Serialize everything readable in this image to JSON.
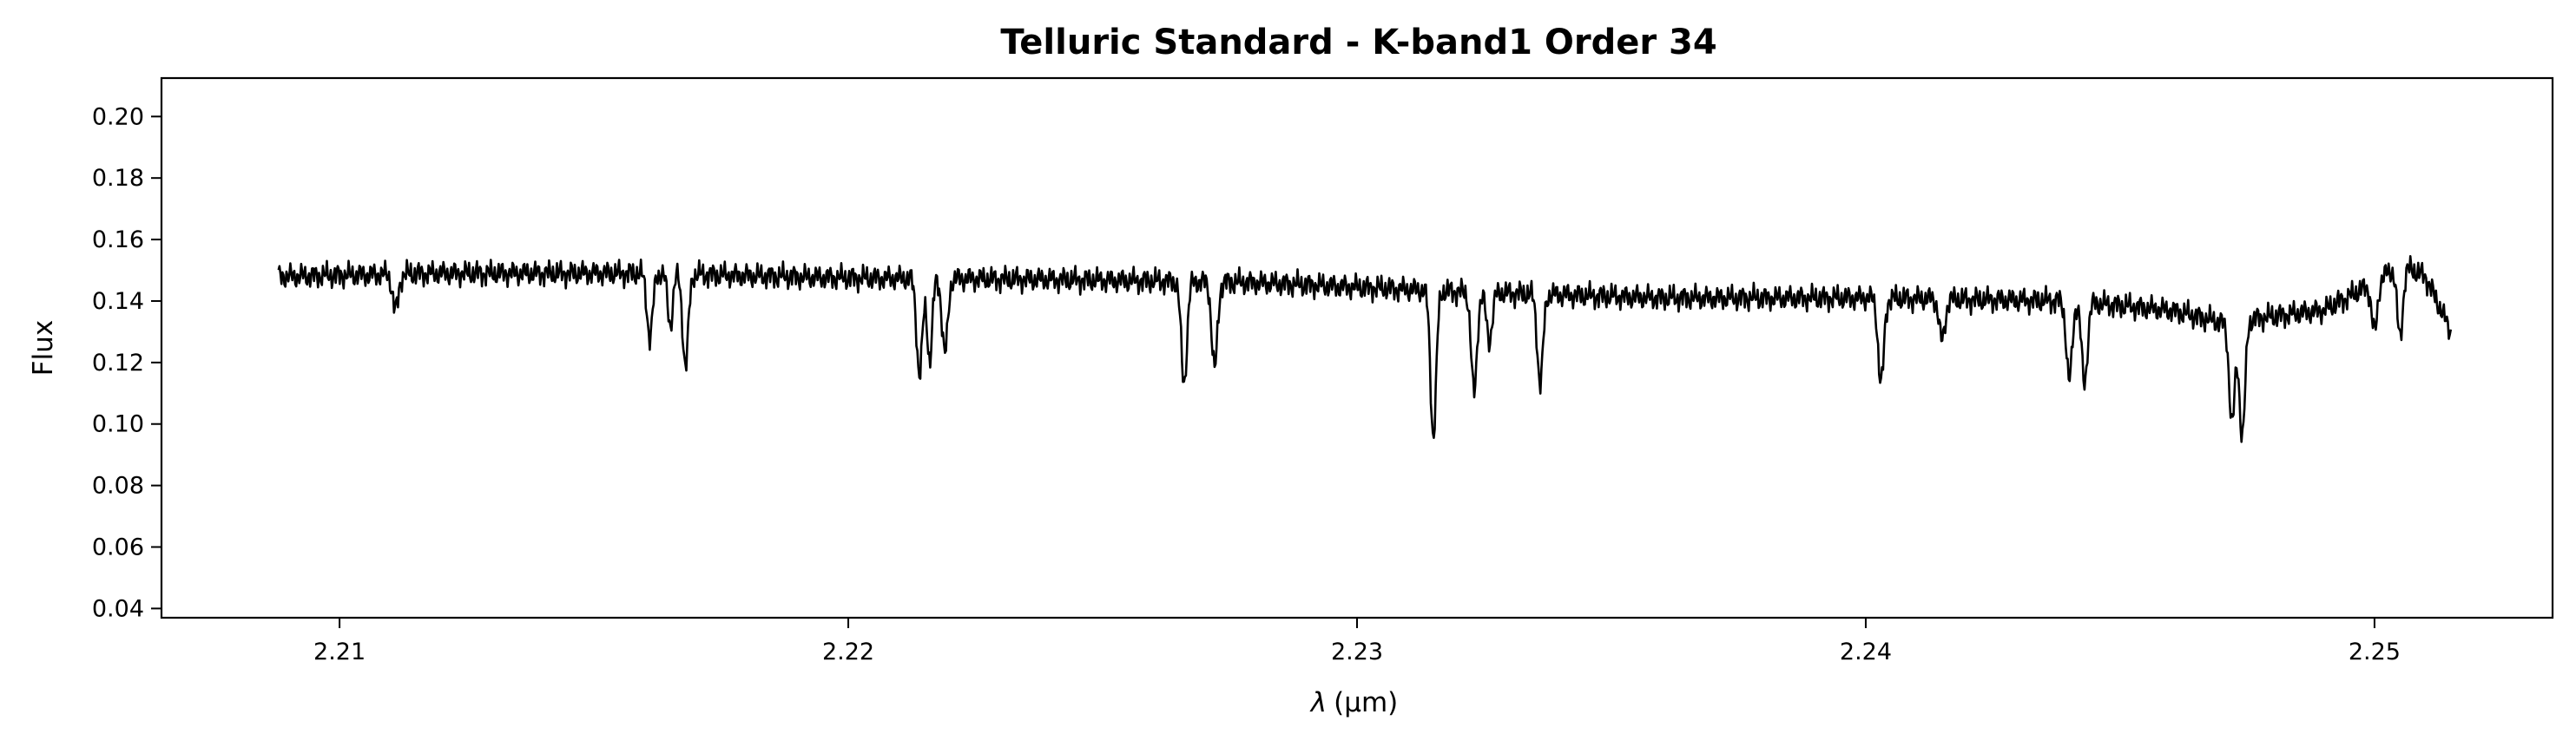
{
  "chart_data": {
    "type": "line",
    "title": "Telluric Standard - K-band1 Order 34",
    "xlabel_symbol": "λ",
    "xlabel_unit": "(μm)",
    "ylabel": "Flux",
    "xlim": [
      2.2065,
      2.2535
    ],
    "ylim": [
      0.037,
      0.2125
    ],
    "x_ticks": [
      2.21,
      2.22,
      2.23,
      2.24,
      2.25
    ],
    "x_tick_labels": [
      "2.21",
      "2.22",
      "2.23",
      "2.24",
      "2.25"
    ],
    "y_ticks": [
      0.04,
      0.06,
      0.08,
      0.1,
      0.12,
      0.14,
      0.16,
      0.18,
      0.2
    ],
    "y_tick_labels": [
      "0.04",
      "0.06",
      "0.08",
      "0.10",
      "0.12",
      "0.14",
      "0.16",
      "0.18",
      "0.20"
    ],
    "grid": false,
    "series": [
      {
        "color": "#000000",
        "x_range": [
          2.2088,
          2.2515
        ],
        "continuum": [
          [
            2.2088,
            0.148
          ],
          [
            2.212,
            0.149
          ],
          [
            2.216,
            0.149
          ],
          [
            2.22,
            0.1475
          ],
          [
            2.224,
            0.147
          ],
          [
            2.228,
            0.146
          ],
          [
            2.232,
            0.143
          ],
          [
            2.236,
            0.141
          ],
          [
            2.24,
            0.141
          ],
          [
            2.244,
            0.14
          ],
          [
            2.246,
            0.137
          ],
          [
            2.247,
            0.133
          ],
          [
            2.248,
            0.135
          ],
          [
            2.249,
            0.137
          ],
          [
            2.25,
            0.146
          ],
          [
            2.2505,
            0.152
          ],
          [
            2.251,
            0.148
          ],
          [
            2.2515,
            0.13
          ]
        ],
        "absorption_lines": [
          [
            2.2111,
            0.137,
            8e-05
          ],
          [
            2.2161,
            0.128,
            8e-05
          ],
          [
            2.2165,
            0.132,
            7e-05
          ],
          [
            2.2168,
            0.119,
            8e-05
          ],
          [
            2.2214,
            0.116,
            8e-05
          ],
          [
            2.2216,
            0.121,
            7e-05
          ],
          [
            2.2219,
            0.123,
            8e-05
          ],
          [
            2.2266,
            0.113,
            8e-05
          ],
          [
            2.2272,
            0.118,
            8e-05
          ],
          [
            2.2315,
            0.096,
            8e-05
          ],
          [
            2.2323,
            0.11,
            8e-05
          ],
          [
            2.2326,
            0.127,
            8e-05
          ],
          [
            2.2336,
            0.113,
            8e-05
          ],
          [
            2.2403,
            0.113,
            8e-05
          ],
          [
            2.2415,
            0.127,
            8e-05
          ],
          [
            2.244,
            0.114,
            8e-05
          ],
          [
            2.2443,
            0.113,
            8e-05
          ],
          [
            2.2472,
            0.1,
            8e-05
          ],
          [
            2.2474,
            0.096,
            8e-05
          ],
          [
            2.25,
            0.13,
            8e-05
          ],
          [
            2.2505,
            0.128,
            8e-05
          ]
        ],
        "noise_amplitude": 0.0025
      }
    ]
  }
}
